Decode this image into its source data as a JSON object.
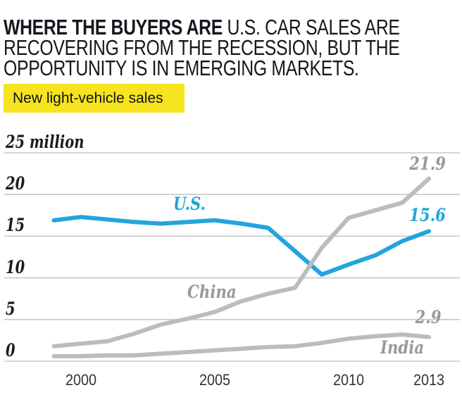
{
  "header": {
    "title_bold": "WHERE THE BUYERS ARE",
    "title_regular_lines": [
      " U.S. CAR SALES ARE",
      "RECOVERING FROM THE RECESSION, BUT THE",
      "OPPORTUNITY IS IN EMERGING MARKETS."
    ],
    "tag_label": "New light-vehicle sales"
  },
  "colors": {
    "accent_blue": "#21A5DC",
    "line_gray": "#BBBCBF",
    "label_gray": "#97999E",
    "highlight_yellow": "#F5E41E",
    "grid_gray": "#C6C7C9"
  },
  "chart_data": {
    "type": "line",
    "title": "New light-vehicle sales",
    "unit": "million vehicles",
    "grid": true,
    "legend_position": "inline-labels",
    "ylim": [
      0,
      25
    ],
    "x": [
      1999,
      2000,
      2001,
      2002,
      2003,
      2004,
      2005,
      2006,
      2007,
      2008,
      2009,
      2010,
      2011,
      2012,
      2013
    ],
    "x_ticks": [
      2000,
      2005,
      2010,
      2013
    ],
    "y_ticks": [
      {
        "value": 25,
        "label": "25 million"
      },
      {
        "value": 20,
        "label": "20"
      },
      {
        "value": 15,
        "label": "15"
      },
      {
        "value": 10,
        "label": "10"
      },
      {
        "value": 5,
        "label": "5"
      },
      {
        "value": 0,
        "label": "0"
      }
    ],
    "series": [
      {
        "name": "U.S.",
        "color": "#21A5DC",
        "end_label": "15.6",
        "values": [
          16.9,
          17.3,
          17.0,
          16.7,
          16.5,
          16.7,
          16.9,
          16.5,
          16.0,
          13.2,
          10.4,
          11.6,
          12.7,
          14.4,
          15.6
        ]
      },
      {
        "name": "China",
        "color": "#BBBCBF",
        "end_label": "21.9",
        "values": [
          1.8,
          2.1,
          2.4,
          3.3,
          4.4,
          5.1,
          5.9,
          7.2,
          8.1,
          8.8,
          13.6,
          17.2,
          18.1,
          19.0,
          21.9
        ]
      },
      {
        "name": "India",
        "color": "#BBBCBF",
        "end_label": "2.9",
        "values": [
          0.6,
          0.6,
          0.7,
          0.7,
          0.9,
          1.1,
          1.3,
          1.5,
          1.7,
          1.8,
          2.2,
          2.7,
          3.0,
          3.2,
          2.9
        ]
      }
    ]
  }
}
